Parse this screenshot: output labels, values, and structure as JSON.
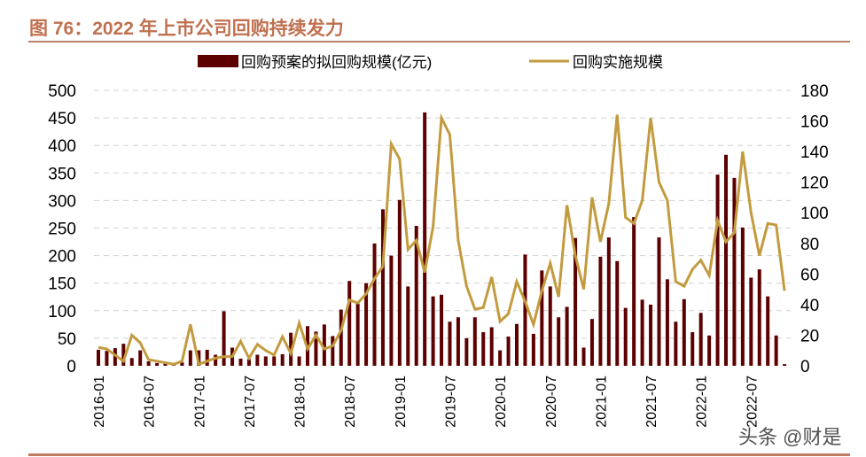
{
  "title": "图 76：2022 年上市公司回购持续发力",
  "watermark": "头条 @财是",
  "chart_data": {
    "type": "bar+line",
    "title": "图 76：2022 年上市公司回购持续发力",
    "categories": [
      "2016-01",
      "2016-02",
      "2016-03",
      "2016-04",
      "2016-05",
      "2016-06",
      "2016-07",
      "2016-08",
      "2016-09",
      "2016-10",
      "2016-11",
      "2016-12",
      "2017-01",
      "2017-02",
      "2017-03",
      "2017-04",
      "2017-05",
      "2017-06",
      "2017-07",
      "2017-08",
      "2017-09",
      "2017-10",
      "2017-11",
      "2017-12",
      "2018-01",
      "2018-02",
      "2018-03",
      "2018-04",
      "2018-05",
      "2018-06",
      "2018-07",
      "2018-08",
      "2018-09",
      "2018-10",
      "2018-11",
      "2018-12",
      "2019-01",
      "2019-02",
      "2019-03",
      "2019-04",
      "2019-05",
      "2019-06",
      "2019-07",
      "2019-08",
      "2019-09",
      "2019-10",
      "2019-11",
      "2019-12",
      "2020-01",
      "2020-02",
      "2020-03",
      "2020-04",
      "2020-05",
      "2020-06",
      "2020-07",
      "2020-08",
      "2020-09",
      "2020-10",
      "2020-11",
      "2020-12",
      "2021-01",
      "2021-02",
      "2021-03",
      "2021-04",
      "2021-05",
      "2021-06",
      "2021-07",
      "2021-08",
      "2021-09",
      "2021-10",
      "2021-11",
      "2021-12",
      "2022-01",
      "2022-02",
      "2022-03",
      "2022-04",
      "2022-05",
      "2022-06",
      "2022-07",
      "2022-08",
      "2022-09",
      "2022-10",
      "2022-11"
    ],
    "x_tick_labels": [
      "2016-01",
      "2016-07",
      "2017-01",
      "2017-07",
      "2018-01",
      "2018-07",
      "2019-01",
      "2019-07",
      "2020-01",
      "2020-07",
      "2021-01",
      "2021-07",
      "2022-01",
      "2022-07"
    ],
    "series": [
      {
        "name": "回购预案的拟回购规模(亿元)",
        "type": "bar",
        "axis": "left",
        "color": "#5c0000",
        "values": [
          29,
          27,
          32,
          40,
          14,
          28,
          8,
          5,
          4,
          4,
          6,
          28,
          28,
          29,
          20,
          99,
          33,
          13,
          12,
          20,
          17,
          17,
          21,
          60,
          17,
          72,
          62,
          75,
          54,
          102,
          154,
          113,
          150,
          222,
          284,
          200,
          301,
          144,
          254,
          460,
          126,
          129,
          80,
          88,
          50,
          88,
          61,
          70,
          28,
          53,
          76,
          202,
          58,
          173,
          144,
          88,
          107,
          232,
          33,
          85,
          198,
          233,
          190,
          105,
          270,
          120,
          111,
          233,
          157,
          80,
          121,
          61,
          96,
          55,
          347,
          383,
          341,
          251,
          160,
          175,
          126,
          55,
          3
        ]
      },
      {
        "name": "回购实施规模",
        "type": "line",
        "axis": "right",
        "color": "#c39b3f",
        "values": [
          12,
          11,
          7,
          3,
          20,
          15,
          4,
          3,
          2,
          1,
          3,
          27,
          1,
          3,
          5,
          6,
          6,
          16,
          5,
          14,
          10,
          7,
          19,
          8,
          28,
          11,
          20,
          11,
          13,
          23,
          43,
          41,
          47,
          57,
          65,
          145,
          135,
          76,
          82,
          61,
          91,
          162,
          151,
          82,
          52,
          37,
          38,
          58,
          29,
          34,
          55,
          42,
          27,
          49,
          67,
          45,
          105,
          72,
          50,
          110,
          81,
          106,
          164,
          97,
          93,
          108,
          162,
          120,
          108,
          55,
          52,
          63,
          69,
          59,
          95,
          81,
          87,
          140,
          100,
          72,
          93,
          92,
          49
        ]
      }
    ],
    "left_axis": {
      "min": 0,
      "max": 500,
      "ticks": [
        0,
        50,
        100,
        150,
        200,
        250,
        300,
        350,
        400,
        450,
        500
      ]
    },
    "right_axis": {
      "min": 0,
      "max": 180,
      "ticks": [
        0,
        20,
        40,
        60,
        80,
        100,
        120,
        140,
        160,
        180
      ]
    },
    "grid": "horizontal dashed",
    "legend": {
      "position": "top",
      "items": [
        "回购预案的拟回购规模(亿元)",
        "回购实施规模"
      ]
    }
  }
}
